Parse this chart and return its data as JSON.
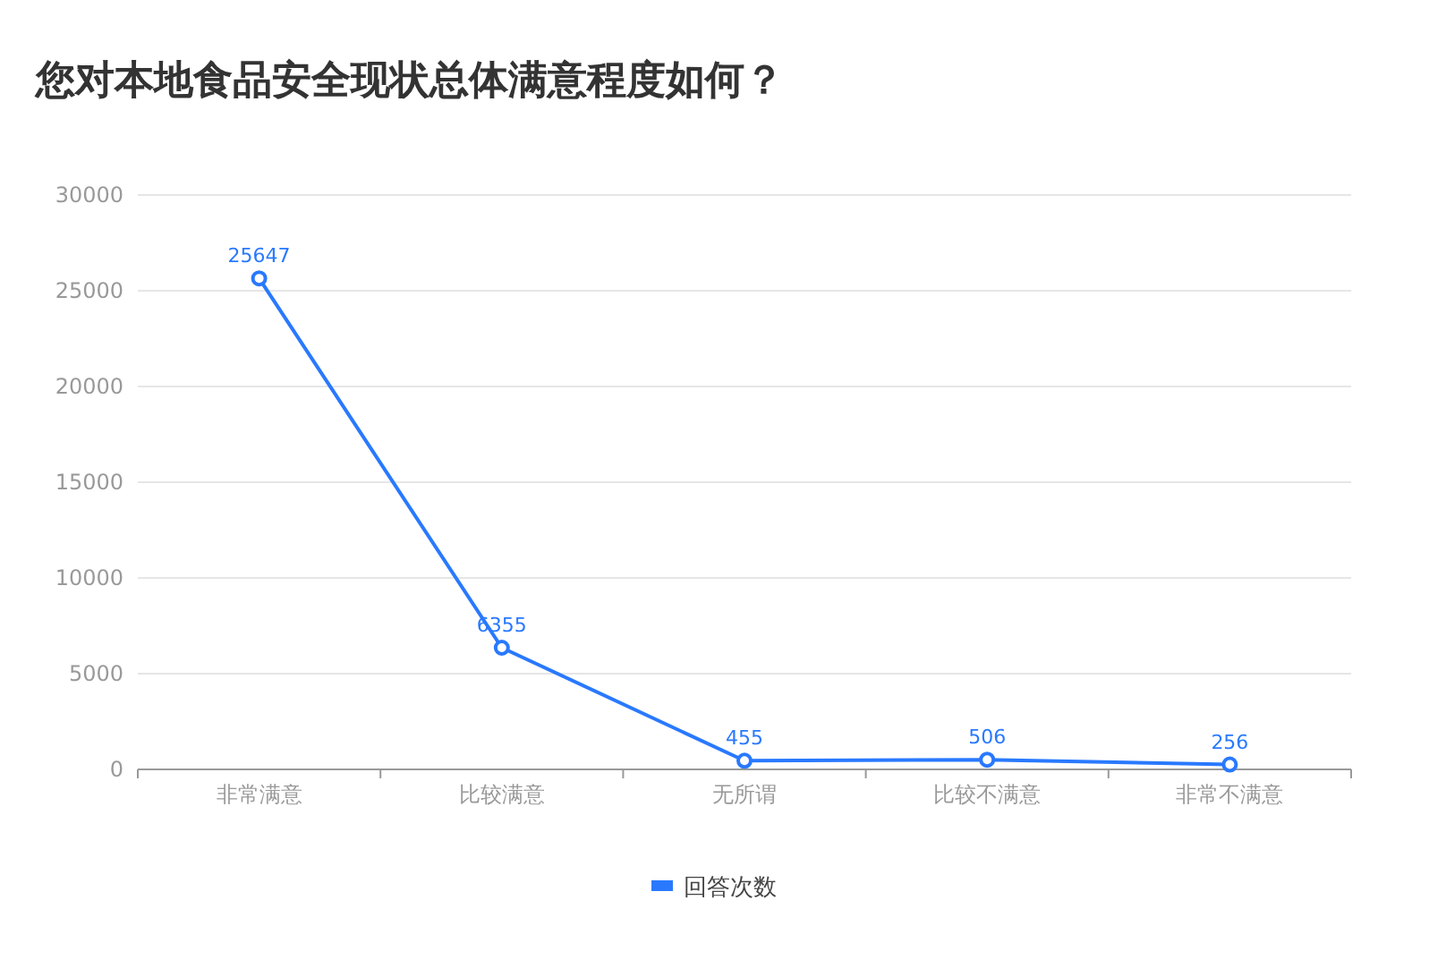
{
  "chart_data": {
    "type": "line",
    "title": "您对本地食品安全现状总体满意程度如何？",
    "categories": [
      "非常满意",
      "比较满意",
      "无所谓",
      "比较不满意",
      "非常不满意"
    ],
    "series": [
      {
        "name": "回答次数",
        "color": "#2979ff",
        "values": [
          25647,
          6355,
          455,
          506,
          256
        ]
      }
    ],
    "ylim": [
      0,
      30000
    ],
    "yticks": [
      0,
      5000,
      10000,
      15000,
      20000,
      25000,
      30000
    ],
    "grid": "y",
    "legend": "bottom",
    "marker": "circle",
    "data_labels": true
  }
}
